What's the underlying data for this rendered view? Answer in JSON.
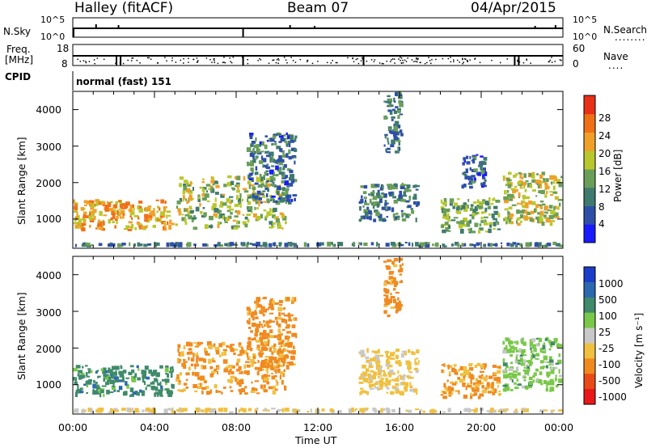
{
  "header": {
    "station": "Halley (fitACF)",
    "beam": "Beam 07",
    "date": "04/Apr/2015"
  },
  "panels": {
    "nsky": {
      "left_label": "N.Sky",
      "ticks": [
        "10^5",
        "10^0"
      ],
      "right_label": "N.Search",
      "right_marker": "........"
    },
    "freq": {
      "left_label_line1": "Freq.",
      "left_label_line2": "[MHz]",
      "left_ticks": [
        "18",
        "8"
      ],
      "right_ticks": [
        "60",
        "0"
      ],
      "right_label": "Nave",
      "right_marker": "...."
    },
    "cpid": {
      "label": "CPID",
      "mode_text": "normal (fast) 151"
    }
  },
  "chart_data": [
    {
      "type": "heatmap",
      "name": "power",
      "ylabel": "Slant Range [km]",
      "yticks": [
        "4000",
        "3000",
        "2000",
        "1000"
      ],
      "ylim": [
        200,
        4500
      ],
      "xlim": [
        0,
        24
      ],
      "colorbar": {
        "label": "Power [dB]",
        "ticks": [
          "28",
          "24",
          "20",
          "16",
          "12",
          "8",
          "4"
        ],
        "range": [
          0,
          32
        ]
      },
      "colors": [
        "#1a1aff",
        "#2e4fa8",
        "#3f7a6e",
        "#6a9e58",
        "#b8c82c",
        "#f0a028",
        "#f07018",
        "#e83018"
      ],
      "regions": [
        {
          "x0": 0.0,
          "x1": 5.0,
          "y0": 650,
          "y1": 1550,
          "value": 22
        },
        {
          "x0": 5.0,
          "x1": 10.5,
          "y0": 700,
          "y1": 2200,
          "value": 16
        },
        {
          "x0": 8.5,
          "x1": 11.0,
          "y0": 1400,
          "y1": 3400,
          "value": 9
        },
        {
          "x0": 15.2,
          "x1": 16.2,
          "y0": 2800,
          "y1": 4500,
          "value": 10
        },
        {
          "x0": 14.0,
          "x1": 17.0,
          "y0": 900,
          "y1": 2000,
          "value": 10
        },
        {
          "x0": 18.0,
          "x1": 21.0,
          "y0": 600,
          "y1": 1600,
          "value": 14
        },
        {
          "x0": 19.0,
          "x1": 20.3,
          "y0": 1800,
          "y1": 2800,
          "value": 8
        },
        {
          "x0": 21.0,
          "x1": 24.0,
          "y0": 800,
          "y1": 2300,
          "value": 18
        },
        {
          "x0": 0.0,
          "x1": 24.0,
          "y0": 220,
          "y1": 380,
          "value": 10
        }
      ]
    },
    {
      "type": "heatmap",
      "name": "velocity",
      "ylabel": "Slant Range [km]",
      "yticks": [
        "4000",
        "3000",
        "2000",
        "1000"
      ],
      "ylim": [
        200,
        4500
      ],
      "xlim": [
        0,
        24
      ],
      "colorbar": {
        "label": "Velocity [m s⁻¹]",
        "ticks": [
          "1000",
          "500",
          "100",
          "25",
          "-25",
          "-100",
          "-500",
          "-1000"
        ]
      },
      "colors": [
        "#1a3cc8",
        "#2a68b0",
        "#3f8a6a",
        "#7ac84a",
        "#c8c8c8",
        "#f0c040",
        "#f08a20",
        "#e84a18",
        "#e81818"
      ],
      "regions": [
        {
          "x0": 0.0,
          "x1": 5.0,
          "y0": 650,
          "y1": 1550,
          "value": 300
        },
        {
          "x0": 5.0,
          "x1": 10.5,
          "y0": 700,
          "y1": 2200,
          "value": -150
        },
        {
          "x0": 8.5,
          "x1": 11.0,
          "y0": 1400,
          "y1": 3400,
          "value": -200
        },
        {
          "x0": 15.2,
          "x1": 16.2,
          "y0": 2800,
          "y1": 4500,
          "value": -250
        },
        {
          "x0": 14.0,
          "x1": 17.0,
          "y0": 700,
          "y1": 2000,
          "value": -50
        },
        {
          "x0": 18.0,
          "x1": 21.0,
          "y0": 600,
          "y1": 1600,
          "value": -120
        },
        {
          "x0": 21.0,
          "x1": 24.0,
          "y0": 800,
          "y1": 2300,
          "value": 60
        },
        {
          "x0": 0.0,
          "x1": 24.0,
          "y0": 220,
          "y1": 380,
          "value": -30
        }
      ]
    }
  ],
  "xaxis": {
    "label": "Time UT",
    "ticks": [
      "00:00",
      "04:00",
      "08:00",
      "12:00",
      "16:00",
      "20:00",
      "00:00"
    ]
  }
}
